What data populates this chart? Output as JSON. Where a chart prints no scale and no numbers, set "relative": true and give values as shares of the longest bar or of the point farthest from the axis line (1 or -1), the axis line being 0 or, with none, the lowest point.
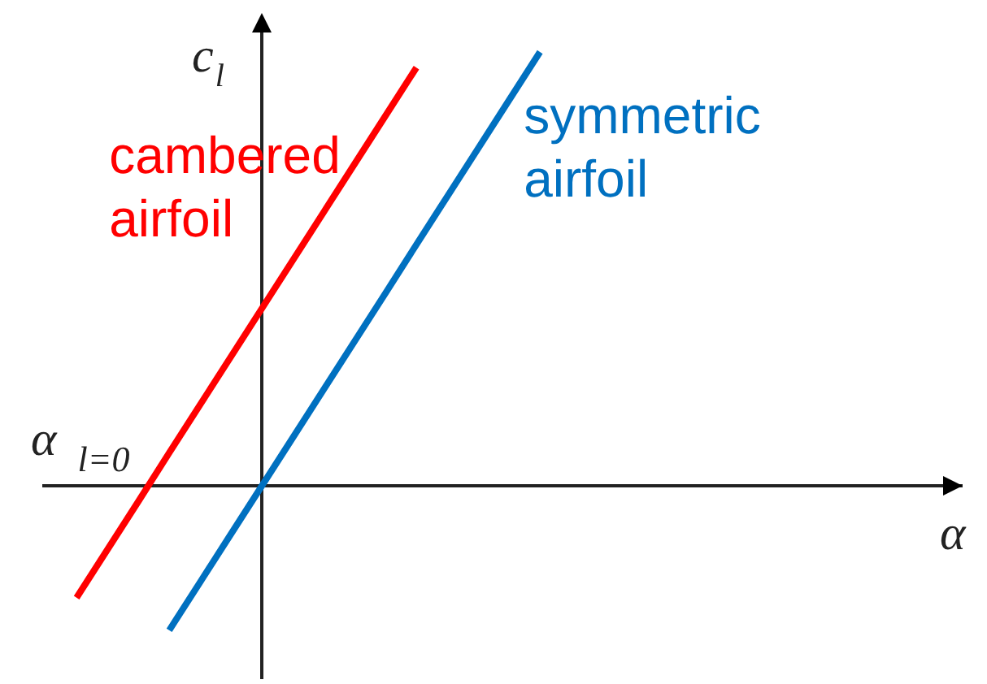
{
  "chart_data": {
    "type": "line",
    "relative": true,
    "xlabel": "α",
    "ylabel": "c$_{l}$",
    "annotations": [
      "α$_{l=0}$"
    ],
    "categories": [
      null,
      null,
      null,
      null,
      null,
      null,
      null,
      null,
      null,
      null,
      null,
      null,
      null,
      null,
      null,
      null,
      null,
      null,
      null,
      null,
      null,
      null,
      null,
      null,
      null,
      null,
      null,
      null,
      null
    ],
    "series": [
      {
        "name": "cambered airfoil",
        "color": "#ff0000",
        "values": [
          -0.258,
          -0.147,
          -0.036,
          0.076,
          0.187,
          0.298,
          0.409,
          0.52,
          0.631,
          0.742,
          0.853,
          0.964,
          null,
          null,
          null,
          null,
          null,
          null,
          null,
          null,
          null,
          null,
          null,
          null,
          null,
          null,
          null,
          null,
          null
        ]
      },
      {
        "name": "symmetric airfoil",
        "color": "#0070c0",
        "values": [
          null,
          null,
          null,
          -0.333,
          -0.222,
          -0.111,
          0,
          0.111,
          0.222,
          0.333,
          0.444,
          0.556,
          0.667,
          0.778,
          0.889,
          1,
          null,
          null,
          null,
          null,
          null,
          null,
          null,
          null,
          null,
          null,
          null,
          null,
          null
        ]
      }
    ]
  }
}
